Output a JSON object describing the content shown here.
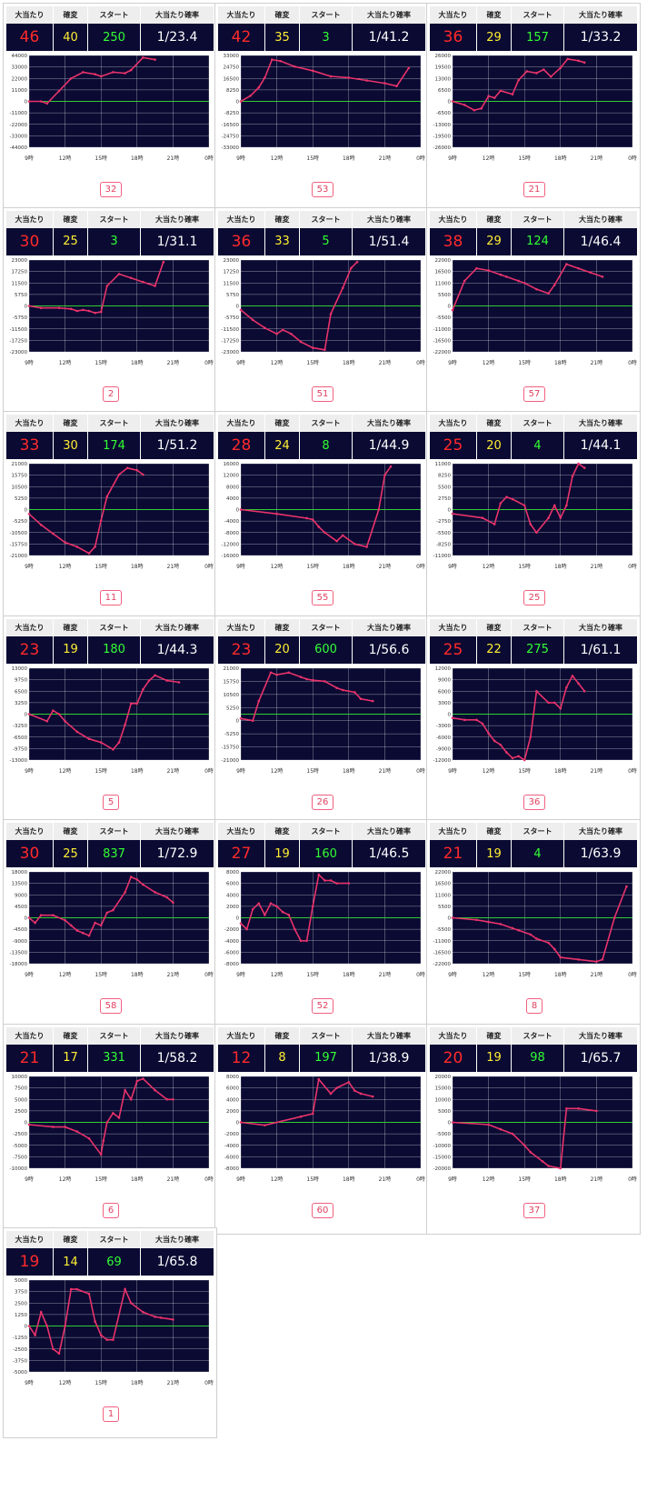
{
  "headers": {
    "hits": "大当たり",
    "kakuhen": "確変",
    "start": "スタート",
    "prob": "大当たり確率"
  },
  "x_ticks": [
    "9時",
    "12時",
    "15時",
    "18時",
    "21時",
    "0時"
  ],
  "colors": {
    "line": "#e8336a",
    "zero": "#33cc33",
    "bg": "#0a0a33",
    "grid": "#ffffff"
  },
  "chart_data": [
    {
      "type": "line",
      "hits": "46",
      "kakuhen": "40",
      "start": "250",
      "prob": "1/23.4",
      "machine": "32",
      "yticks": [
        "44000",
        "33000",
        "22000",
        "11000",
        "0",
        "-11000",
        "-22000",
        "-33000",
        "-44000"
      ],
      "ylim": [
        -44000,
        44000
      ],
      "x": [
        9,
        10,
        10.5,
        11.5,
        12.5,
        13.5,
        14.5,
        15,
        16,
        17,
        17.5,
        18.5,
        19.5
      ],
      "y": [
        0,
        0,
        -2000,
        10000,
        22000,
        28000,
        26000,
        24000,
        28000,
        27000,
        30000,
        42000,
        40000
      ]
    },
    {
      "type": "line",
      "hits": "42",
      "kakuhen": "35",
      "start": "3",
      "prob": "1/41.2",
      "machine": "53",
      "yticks": [
        "33000",
        "24750",
        "16500",
        "8250",
        "0",
        "-8250",
        "-16500",
        "-24750",
        "-33000"
      ],
      "ylim": [
        -33000,
        33000
      ],
      "x": [
        9,
        9.8,
        10.5,
        11,
        11.6,
        12.3,
        13.5,
        15,
        16.5,
        18,
        19.5,
        21,
        22,
        23
      ],
      "y": [
        0,
        4000,
        10000,
        17000,
        30000,
        29000,
        25000,
        22000,
        18000,
        17000,
        15000,
        13000,
        11000,
        24000
      ]
    },
    {
      "type": "line",
      "hits": "36",
      "kakuhen": "29",
      "start": "157",
      "prob": "1/33.2",
      "machine": "21",
      "yticks": [
        "26000",
        "19500",
        "13000",
        "6500",
        "0",
        "-6500",
        "-13000",
        "-19500",
        "-26000"
      ],
      "ylim": [
        -26000,
        26000
      ],
      "x": [
        9,
        10,
        10.8,
        11.4,
        12,
        12.5,
        13,
        14,
        14.5,
        15.2,
        16,
        16.6,
        17.2,
        18,
        18.6,
        19.5,
        20
      ],
      "y": [
        0,
        -2000,
        -5000,
        -4000,
        3000,
        2000,
        6000,
        4000,
        12000,
        17000,
        16000,
        18000,
        14000,
        19000,
        24000,
        23000,
        22000
      ]
    },
    {
      "type": "line",
      "hits": "30",
      "kakuhen": "25",
      "start": "3",
      "prob": "1/31.1",
      "machine": "2",
      "yticks": [
        "23000",
        "17250",
        "11500",
        "5750",
        "0",
        "-5750",
        "-11500",
        "-17250",
        "-23000"
      ],
      "ylim": [
        -23000,
        23000
      ],
      "x": [
        9,
        10,
        11.5,
        12.5,
        13,
        13.5,
        14,
        14.5,
        15,
        15.5,
        16.5,
        17.5,
        18.5,
        19.5,
        20.2
      ],
      "y": [
        0,
        -1000,
        -1000,
        -1500,
        -2500,
        -2000,
        -2500,
        -3500,
        -3000,
        10000,
        16000,
        14000,
        12000,
        10000,
        22000
      ]
    },
    {
      "type": "line",
      "hits": "36",
      "kakuhen": "33",
      "start": "5",
      "prob": "1/51.4",
      "machine": "51",
      "yticks": [
        "23000",
        "17250",
        "11500",
        "5750",
        "0",
        "-5750",
        "-11500",
        "-17250",
        "-23000"
      ],
      "ylim": [
        -23000,
        23000
      ],
      "x": [
        9,
        10,
        11,
        12,
        12.5,
        13.2,
        14,
        15,
        16,
        16.5,
        17.5,
        18.2,
        18.7
      ],
      "y": [
        -2000,
        -7000,
        -11000,
        -14000,
        -12000,
        -14000,
        -18000,
        -21000,
        -22000,
        -4000,
        9000,
        19000,
        22000
      ]
    },
    {
      "type": "line",
      "hits": "38",
      "kakuhen": "29",
      "start": "124",
      "prob": "1/46.4",
      "machine": "57",
      "yticks": [
        "22000",
        "16500",
        "11000",
        "5500",
        "0",
        "-5500",
        "-11000",
        "-16500",
        "-22000"
      ],
      "ylim": [
        -22000,
        22000
      ],
      "x": [
        9,
        10,
        11,
        12,
        13,
        13.5,
        14.5,
        15,
        16,
        17,
        17.5,
        18.5,
        19.5,
        20.5,
        21.5
      ],
      "y": [
        -2000,
        12000,
        18000,
        17000,
        15000,
        14000,
        12000,
        11000,
        8000,
        6000,
        10000,
        20000,
        18000,
        16000,
        14000
      ]
    },
    {
      "type": "line",
      "hits": "33",
      "kakuhen": "30",
      "start": "174",
      "prob": "1/51.2",
      "machine": "11",
      "yticks": [
        "21000",
        "15750",
        "10500",
        "5250",
        "0",
        "-5250",
        "-10500",
        "-15750",
        "-21000"
      ],
      "ylim": [
        -21000,
        21000
      ],
      "x": [
        9,
        10,
        11,
        12,
        13,
        14,
        14.5,
        15,
        15.5,
        16.5,
        17.2,
        18,
        18.5
      ],
      "y": [
        -2000,
        -7000,
        -11000,
        -15000,
        -17000,
        -20000,
        -17000,
        -5000,
        6000,
        16000,
        19000,
        18000,
        16000
      ]
    },
    {
      "type": "line",
      "hits": "28",
      "kakuhen": "24",
      "start": "8",
      "prob": "1/44.9",
      "machine": "55",
      "yticks": [
        "16000",
        "12000",
        "8000",
        "4000",
        "0",
        "-4000",
        "-8000",
        "-12000",
        "-16000"
      ],
      "ylim": [
        -16000,
        16000
      ],
      "x": [
        9,
        12,
        14.5,
        15,
        15.5,
        16,
        17,
        17.5,
        18.5,
        19.5,
        20.5,
        21,
        21.5
      ],
      "y": [
        0,
        -1500,
        -3000,
        -3500,
        -6000,
        -8000,
        -11000,
        -9000,
        -12000,
        -13000,
        0,
        12000,
        15000
      ]
    },
    {
      "type": "line",
      "hits": "25",
      "kakuhen": "20",
      "start": "4",
      "prob": "1/44.1",
      "machine": "25",
      "yticks": [
        "11000",
        "8250",
        "5500",
        "2750",
        "0",
        "-2750",
        "-5500",
        "-8250",
        "-11000"
      ],
      "ylim": [
        -11000,
        11000
      ],
      "x": [
        9,
        11.5,
        12.5,
        13,
        13.5,
        14,
        15,
        15.5,
        16,
        17,
        17.5,
        18,
        18.5,
        19,
        19.5,
        20
      ],
      "y": [
        -1000,
        -2000,
        -3500,
        1500,
        3000,
        2500,
        1000,
        -3500,
        -5500,
        -2000,
        1000,
        -2000,
        1000,
        8000,
        11000,
        10000
      ]
    },
    {
      "type": "line",
      "hits": "23",
      "kakuhen": "19",
      "start": "180",
      "prob": "1/44.3",
      "machine": "5",
      "yticks": [
        "13000",
        "9750",
        "6500",
        "3250",
        "0",
        "-3250",
        "-6500",
        "-9750",
        "-13000"
      ],
      "ylim": [
        -13000,
        13000
      ],
      "x": [
        9,
        10.5,
        11,
        11.5,
        12,
        13,
        14,
        15,
        16,
        16.5,
        17,
        17.5,
        18,
        18.5,
        19,
        19.5,
        20.5,
        21.5
      ],
      "y": [
        0,
        -2000,
        1000,
        0,
        -2000,
        -5000,
        -7000,
        -8000,
        -10000,
        -8000,
        -3000,
        3000,
        3000,
        7000,
        9500,
        11000,
        9500,
        9000
      ]
    },
    {
      "type": "line",
      "hits": "23",
      "kakuhen": "20",
      "start": "600",
      "prob": "1/56.6",
      "machine": "26",
      "yticks": [
        "21000",
        "15750",
        "10500",
        "5250",
        "0",
        "-5250",
        "-15750",
        "-21000"
      ],
      "ylim": [
        -21000,
        21000
      ],
      "x": [
        9,
        10,
        10.5,
        11.5,
        12,
        13,
        14,
        14.5,
        15,
        16,
        17,
        17.5,
        18.5,
        19,
        20
      ],
      "y": [
        -2000,
        -3000,
        6000,
        19000,
        18000,
        19000,
        17000,
        16000,
        15500,
        15000,
        12000,
        11000,
        10000,
        7000,
        6000
      ]
    },
    {
      "type": "line",
      "hits": "25",
      "kakuhen": "22",
      "start": "275",
      "prob": "1/61.1",
      "machine": "36",
      "yticks": [
        "12000",
        "9000",
        "6000",
        "3000",
        "0",
        "-3000",
        "-6000",
        "-9000",
        "-12000"
      ],
      "ylim": [
        -12000,
        12000
      ],
      "x": [
        9,
        10,
        11,
        11.5,
        12,
        12.5,
        13,
        13.5,
        14,
        14.5,
        15,
        15.5,
        16,
        17,
        17.5,
        18,
        18.5,
        19,
        19.5,
        20
      ],
      "y": [
        -1000,
        -1500,
        -1500,
        -2500,
        -5000,
        -7000,
        -8000,
        -10000,
        -11500,
        -11000,
        -12000,
        -6000,
        6000,
        3000,
        3000,
        1500,
        7000,
        10000,
        8000,
        6000
      ]
    },
    {
      "type": "line",
      "hits": "30",
      "kakuhen": "25",
      "start": "837",
      "prob": "1/72.9",
      "machine": "58",
      "yticks": [
        "18000",
        "13500",
        "9000",
        "4500",
        "0",
        "-4500",
        "-9000",
        "-13500",
        "-18000"
      ],
      "ylim": [
        -18000,
        18000
      ],
      "x": [
        9,
        9.5,
        10,
        11,
        12,
        12.5,
        13,
        13.5,
        14,
        14.5,
        15,
        15.5,
        16,
        17,
        17.5,
        18,
        18.5,
        19.5,
        20.5,
        21
      ],
      "y": [
        0,
        -2000,
        1000,
        1000,
        -1000,
        -3000,
        -5000,
        -6000,
        -7000,
        -2000,
        -3000,
        2000,
        3000,
        10000,
        16000,
        15000,
        13000,
        10000,
        8000,
        6000
      ]
    },
    {
      "type": "line",
      "hits": "27",
      "kakuhen": "19",
      "start": "160",
      "prob": "1/46.5",
      "machine": "52",
      "yticks": [
        "8000",
        "6000",
        "4000",
        "2000",
        "0",
        "-2000",
        "-4000",
        "-6000",
        "-8000"
      ],
      "ylim": [
        -8000,
        8000
      ],
      "x": [
        9,
        9.5,
        10,
        10.5,
        11,
        11.5,
        12,
        12.5,
        13,
        13.5,
        14,
        14.5,
        15,
        15.5,
        16,
        16.5,
        17,
        18
      ],
      "y": [
        -1000,
        -2000,
        1500,
        2500,
        500,
        2500,
        2000,
        1000,
        500,
        -2000,
        -4000,
        -4000,
        2000,
        7500,
        6500,
        6500,
        6000,
        6000
      ]
    },
    {
      "type": "line",
      "hits": "21",
      "kakuhen": "19",
      "start": "4",
      "prob": "1/63.9",
      "machine": "8",
      "yticks": [
        "22000",
        "16500",
        "11000",
        "5500",
        "0",
        "-5500",
        "-11000",
        "-16500",
        "-22000"
      ],
      "ylim": [
        -22000,
        22000
      ],
      "x": [
        9,
        11,
        12,
        13,
        14,
        14.5,
        15.5,
        16,
        17,
        17.5,
        18,
        19.5,
        21,
        21.5,
        22.5,
        23.5
      ],
      "y": [
        0,
        -1000,
        -2000,
        -3000,
        -5000,
        -6000,
        -8000,
        -10000,
        -12000,
        -15000,
        -19000,
        -20000,
        -21000,
        -20000,
        0,
        15000
      ]
    },
    {
      "type": "line",
      "hits": "21",
      "kakuhen": "17",
      "start": "331",
      "prob": "1/58.2",
      "machine": "6",
      "yticks": [
        "10000",
        "7500",
        "5000",
        "2500",
        "0",
        "-2500",
        "-5000",
        "-7500",
        "-10000"
      ],
      "ylim": [
        -10000,
        10000
      ],
      "x": [
        9,
        11,
        12,
        13,
        14,
        15,
        15.2,
        15.5,
        16,
        16.5,
        17,
        17.5,
        18,
        18.5,
        19.5,
        20.5,
        21
      ],
      "y": [
        -500,
        -1000,
        -1000,
        -2000,
        -3500,
        -7000,
        -4000,
        0,
        2000,
        1000,
        7000,
        5000,
        9000,
        9500,
        7000,
        5000,
        5000
      ]
    },
    {
      "type": "line",
      "hits": "12",
      "kakuhen": "8",
      "start": "197",
      "prob": "1/38.9",
      "machine": "60",
      "yticks": [
        "8000",
        "6000",
        "4000",
        "2000",
        "0",
        "-2000",
        "-4000",
        "-6000",
        "-8000"
      ],
      "ylim": [
        -8000,
        8000
      ],
      "x": [
        9,
        11,
        14,
        15,
        15.5,
        16.5,
        17,
        18,
        18.5,
        19,
        20
      ],
      "y": [
        0,
        -500,
        1000,
        1500,
        7500,
        5000,
        6000,
        7000,
        5500,
        5000,
        4500
      ]
    },
    {
      "type": "line",
      "hits": "20",
      "kakuhen": "19",
      "start": "98",
      "prob": "1/65.7",
      "machine": "37",
      "yticks": [
        "20000",
        "15000",
        "10000",
        "5000",
        "0",
        "-5000",
        "-10000",
        "-15000",
        "-20000"
      ],
      "ylim": [
        -20000,
        20000
      ],
      "x": [
        9,
        12,
        13,
        14,
        15,
        15.5,
        16.5,
        17,
        18,
        18.5,
        19.5,
        21
      ],
      "y": [
        0,
        -1000,
        -3000,
        -5000,
        -10000,
        -13000,
        -17000,
        -19000,
        -20000,
        6000,
        6000,
        5000
      ]
    },
    {
      "type": "line",
      "hits": "19",
      "kakuhen": "14",
      "start": "69",
      "prob": "1/65.8",
      "machine": "1",
      "yticks": [
        "5000",
        "3750",
        "2500",
        "1250",
        "0",
        "-1250",
        "-2500",
        "-3750",
        "-5000"
      ],
      "ylim": [
        -5000,
        5000
      ],
      "x": [
        9,
        9.5,
        10,
        10.5,
        11,
        11.5,
        12,
        12.5,
        13,
        14,
        14.5,
        15,
        15.5,
        16,
        17,
        17.5,
        18.5,
        19.5,
        20,
        21
      ],
      "y": [
        0,
        -1000,
        1500,
        0,
        -2500,
        -3000,
        0,
        4000,
        4000,
        3500,
        500,
        -1000,
        -1500,
        -1500,
        4000,
        2500,
        1500,
        1000,
        900,
        700
      ]
    }
  ]
}
